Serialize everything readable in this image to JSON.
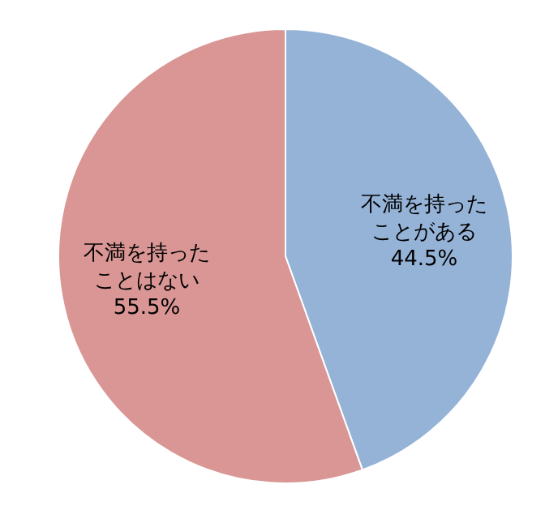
{
  "chart_data": {
    "type": "pie",
    "categories": [
      "不満を持ったことがある",
      "不満を持ったことはない"
    ],
    "values": [
      44.5,
      55.5
    ],
    "colors": [
      "#95b3d7",
      "#d99694"
    ],
    "value_labels": [
      "44.5%",
      "55.5%"
    ]
  }
}
